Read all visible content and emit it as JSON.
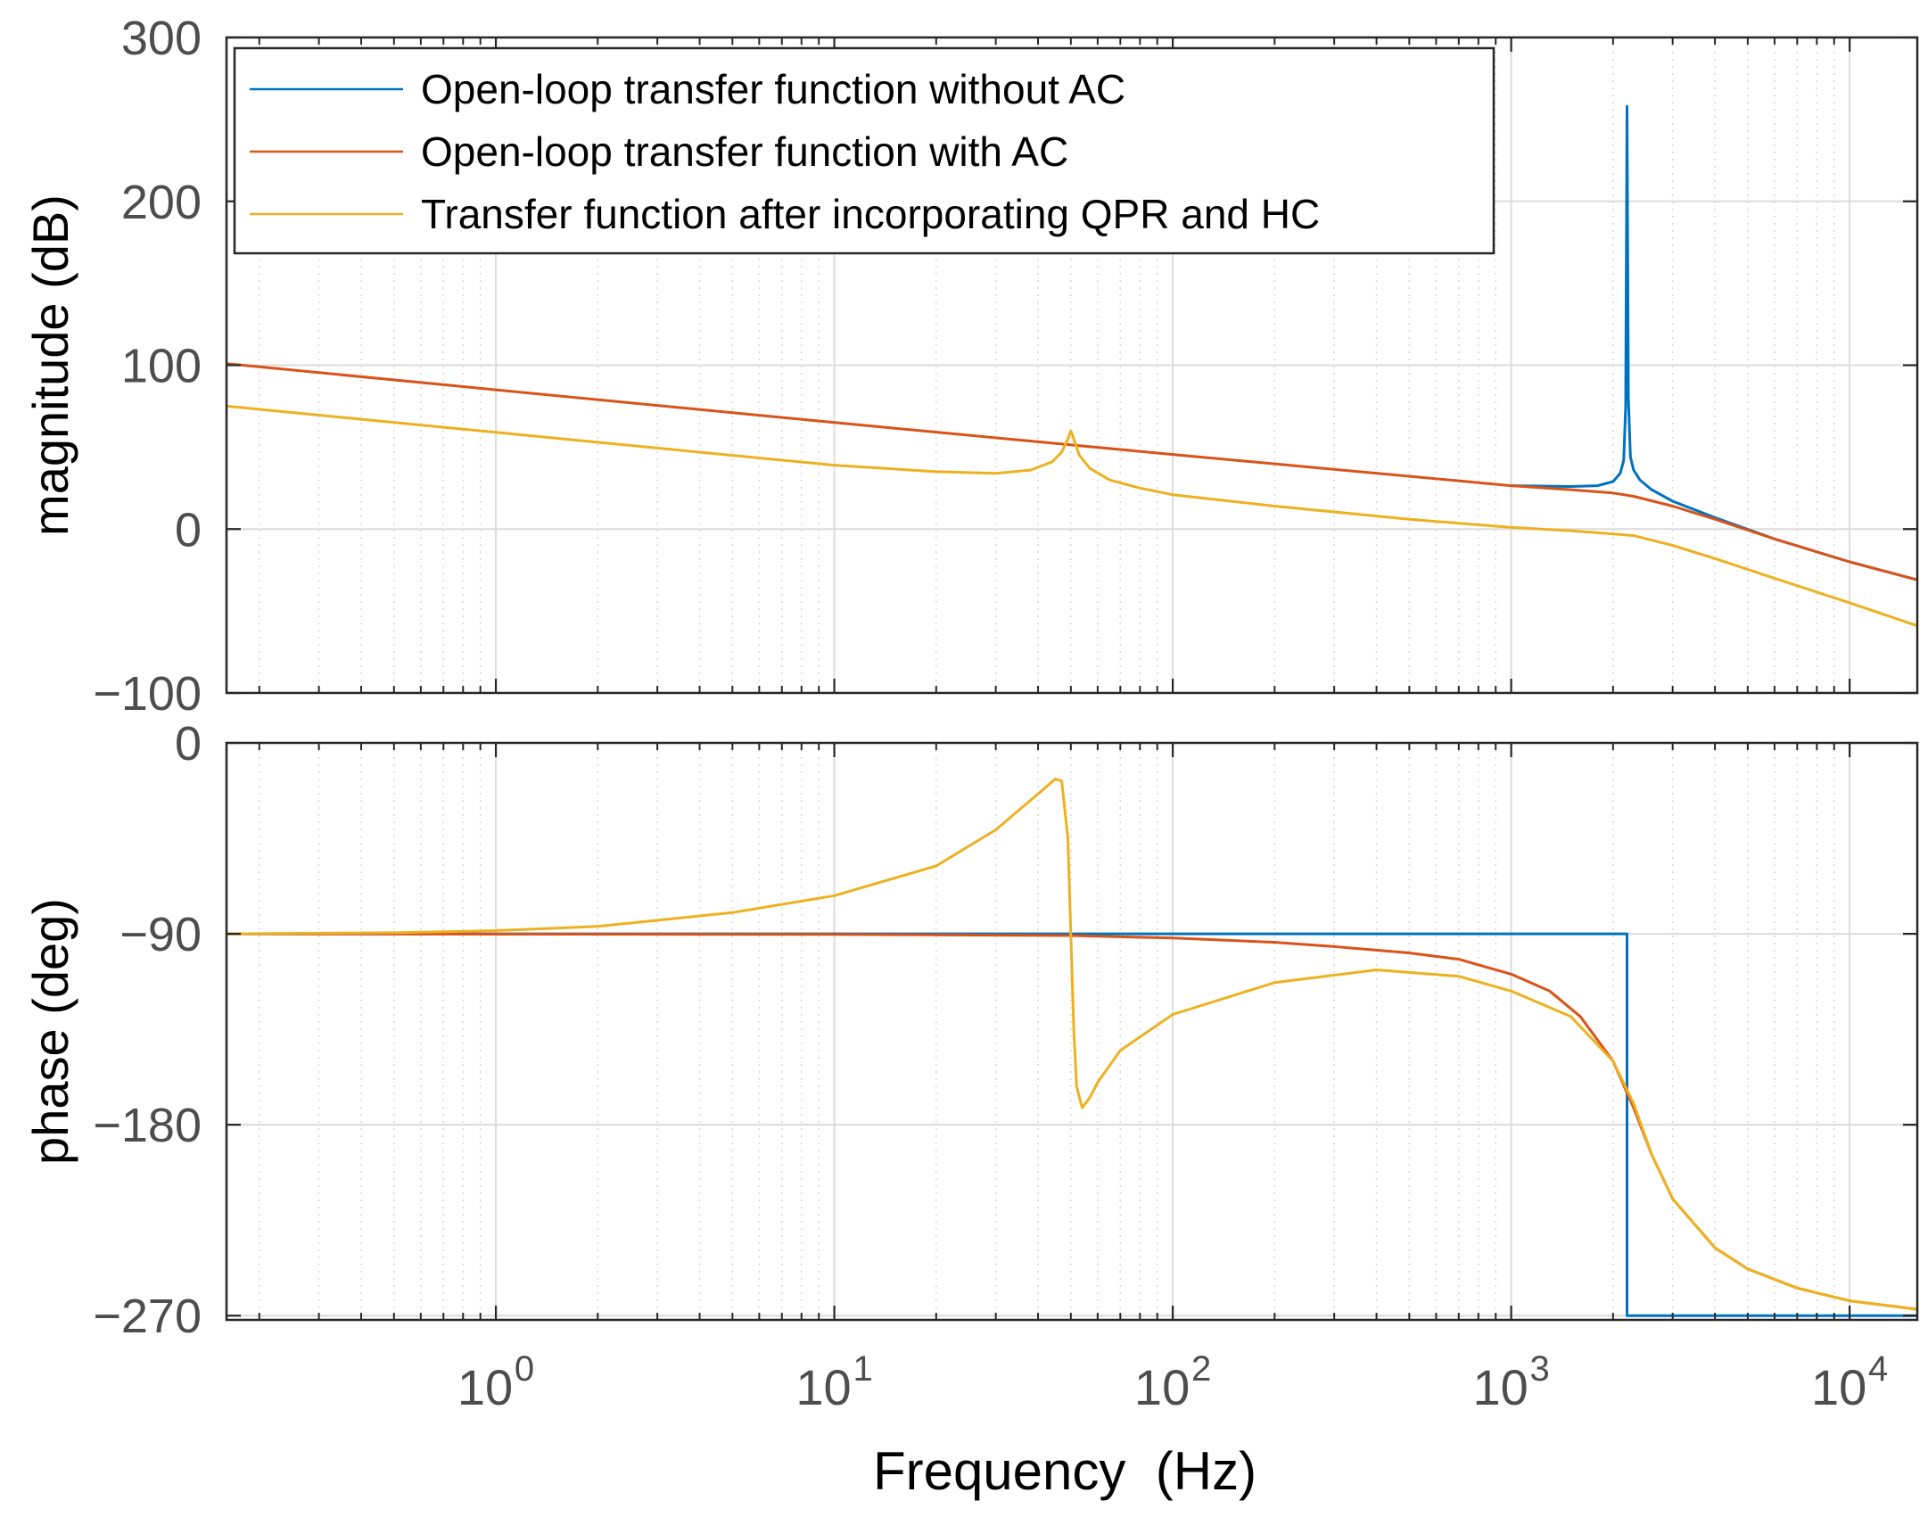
{
  "chart_data": [
    {
      "type": "line",
      "panel": "magnitude",
      "xscale": "log",
      "xlim": [
        0.16,
        15848
      ],
      "ylim": [
        -100,
        300
      ],
      "yticks": [
        "300",
        "200",
        "100",
        "0",
        "−100"
      ],
      "ylabel": "magnitude (dB)",
      "grid": true,
      "minor_grid": true,
      "legend": {
        "placement": "top-left",
        "entries": [
          "Open-loop transfer function without AC",
          "Open-loop transfer function with AC",
          "Transfer function after incorporating QPR and HC"
        ]
      },
      "series": [
        {
          "name": "Open-loop transfer function without AC",
          "color": "#0072BD",
          "x": [
            1000,
            1500,
            1800,
            2000,
            2100,
            2150,
            2180,
            2200,
            2220,
            2250,
            2300,
            2400,
            2600,
            3000,
            4000,
            6000,
            10000,
            15848
          ],
          "y": [
            26.5,
            26,
            26.5,
            29,
            34,
            42,
            75,
            258,
            80,
            44,
            36,
            30,
            24,
            17,
            7,
            -6,
            -20,
            -31
          ]
        },
        {
          "name": "Open-loop transfer function with AC",
          "color": "#D95319",
          "x": [
            0.16,
            1,
            10,
            100,
            1000,
            1500,
            2000,
            2300,
            3000,
            4000,
            6000,
            10000,
            15848
          ],
          "y": [
            101,
            85,
            65,
            45.5,
            26.5,
            24,
            22,
            20,
            14,
            6,
            -6,
            -20,
            -31
          ]
        },
        {
          "name": "Transfer function after incorporating QPR and HC",
          "color": "#EDB120",
          "x": [
            0.16,
            1,
            5,
            10,
            20,
            30,
            38,
            44,
            47,
            49,
            50,
            51,
            53,
            57,
            65,
            80,
            100,
            200,
            500,
            1000,
            1500,
            2000,
            2300,
            3000,
            4000,
            6000,
            10000,
            15848
          ],
          "y": [
            75,
            59,
            45,
            39,
            35,
            34,
            36,
            41,
            47,
            55,
            60,
            55,
            45,
            37,
            30,
            25,
            21,
            14,
            6,
            1,
            -1,
            -3,
            -4,
            -10,
            -18,
            -30,
            -45,
            -59
          ]
        }
      ]
    },
    {
      "type": "line",
      "panel": "phase",
      "xscale": "log",
      "xlim": [
        0.16,
        15848
      ],
      "ylim": [
        -272,
        0
      ],
      "yticks": [
        "0",
        "−90",
        "−180",
        "−270"
      ],
      "xticks": [
        {
          "value": 1,
          "base": "10",
          "exp": "0"
        },
        {
          "value": 10,
          "base": "10",
          "exp": "1"
        },
        {
          "value": 100,
          "base": "10",
          "exp": "2"
        },
        {
          "value": 1000,
          "base": "10",
          "exp": "3"
        },
        {
          "value": 10000,
          "base": "10",
          "exp": "4"
        }
      ],
      "ylabel": "phase (deg)",
      "xlabel": "Frequency  (Hz)",
      "grid": true,
      "minor_grid": true,
      "series": [
        {
          "name": "Open-loop transfer function without AC",
          "color": "#0072BD",
          "x": [
            0.16,
            2200,
            2200,
            15848
          ],
          "y": [
            -90,
            -90,
            -270,
            -270
          ]
        },
        {
          "name": "Open-loop transfer function with AC",
          "color": "#D95319",
          "x": [
            0.16,
            10,
            50,
            100,
            200,
            300,
            500,
            700,
            1000,
            1300,
            1600,
            2000,
            2300,
            2600,
            3000,
            4000,
            5000,
            7000,
            10000,
            15848
          ],
          "y": [
            -90,
            -90.3,
            -90.8,
            -92,
            -94,
            -96,
            -99,
            -102,
            -109,
            -117,
            -129,
            -150,
            -172,
            -194,
            -215,
            -238,
            -248,
            -257,
            -263,
            -267
          ]
        },
        {
          "name": "Transfer function after incorporating QPR and HC",
          "color": "#EDB120",
          "x": [
            0.16,
            0.5,
            1,
            2,
            5,
            10,
            20,
            30,
            40,
            45,
            47,
            49,
            50,
            51,
            52,
            54,
            57,
            60,
            70,
            100,
            200,
            400,
            700,
            1000,
            1500,
            2000,
            2300,
            2600,
            3000,
            4000,
            5000,
            7000,
            10000,
            15848
          ],
          "y": [
            -90,
            -89.5,
            -88.5,
            -86.5,
            -80,
            -72,
            -58,
            -41,
            -24,
            -17,
            -18,
            -45,
            -90,
            -135,
            -162,
            -172,
            -167,
            -160,
            -145,
            -128,
            -113,
            -107,
            -110,
            -117,
            -129,
            -150,
            -170,
            -194,
            -215,
            -238,
            -248,
            -257,
            -263,
            -267
          ]
        }
      ]
    }
  ]
}
